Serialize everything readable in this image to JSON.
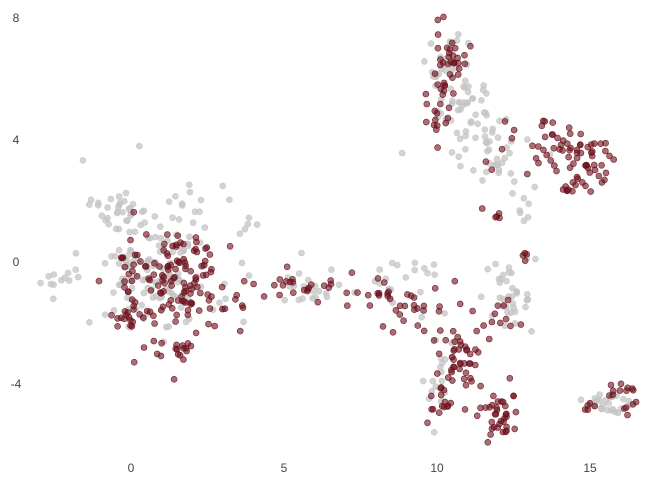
{
  "chart_data": {
    "type": "scatter",
    "title": "",
    "xlabel": "",
    "ylabel": "",
    "xlim": [
      -3.5,
      16.9
    ],
    "ylim": [
      -6.4,
      8.3
    ],
    "x_ticks": [
      0,
      5,
      10,
      15
    ],
    "y_ticks": [
      -4,
      0,
      4,
      8
    ],
    "x_tick_labels": [
      "0",
      "5",
      "10",
      "15"
    ],
    "y_tick_labels": [
      "-4",
      "0",
      "4",
      "8"
    ],
    "grid": false,
    "legend": "none",
    "colors": {
      "highlight": "#6b0f1a",
      "background": "#c4c4c4"
    },
    "series": [
      {
        "color": "#c4c4c4",
        "clusters": [
          {
            "cx": 0.9,
            "cy": -0.2,
            "sx": 1.2,
            "sy": 1.2,
            "n": 150
          },
          {
            "cx": -0.3,
            "cy": 1.6,
            "sx": 0.5,
            "sy": 0.35,
            "n": 30
          },
          {
            "cx": -2.3,
            "cy": -0.5,
            "sx": 0.35,
            "sy": 0.3,
            "n": 12
          },
          {
            "cx": 3.9,
            "cy": 1.0,
            "sx": 0.15,
            "sy": 0.15,
            "n": 4
          },
          {
            "cx": 6.2,
            "cy": -0.9,
            "sx": 1.3,
            "sy": 0.2,
            "n": 25
          },
          {
            "cx": 9.0,
            "cy": -0.3,
            "sx": 0.7,
            "sy": 0.3,
            "n": 15
          },
          {
            "cx": 10.3,
            "cy": 6.3,
            "sx": 0.4,
            "sy": 0.7,
            "n": 25
          },
          {
            "cx": 11.0,
            "cy": 5.0,
            "sx": 0.5,
            "sy": 0.6,
            "n": 40
          },
          {
            "cx": 11.8,
            "cy": 3.6,
            "sx": 0.6,
            "sy": 0.6,
            "n": 35
          },
          {
            "cx": 12.9,
            "cy": 1.8,
            "sx": 0.5,
            "sy": 0.4,
            "n": 8
          },
          {
            "cx": 12.4,
            "cy": -1.4,
            "sx": 0.4,
            "sy": 0.5,
            "n": 30
          },
          {
            "cx": 10.2,
            "cy": -2.8,
            "sx": 0.4,
            "sy": 0.6,
            "n": 12
          },
          {
            "cx": 10.0,
            "cy": -4.4,
            "sx": 0.4,
            "sy": 0.3,
            "n": 8
          },
          {
            "cx": 15.5,
            "cy": -4.7,
            "sx": 0.45,
            "sy": 0.3,
            "n": 25
          },
          {
            "cx": 12.6,
            "cy": -0.1,
            "sx": 0.3,
            "sy": 0.3,
            "n": 6
          }
        ]
      },
      {
        "color": "#6b0f1a",
        "clusters": [
          {
            "cx": 1.4,
            "cy": -0.7,
            "sx": 1.0,
            "sy": 1.0,
            "n": 140
          },
          {
            "cx": 0.0,
            "cy": -1.9,
            "sx": 0.3,
            "sy": 0.2,
            "n": 15
          },
          {
            "cx": 1.6,
            "cy": -3.0,
            "sx": 0.3,
            "sy": 0.15,
            "n": 12
          },
          {
            "cx": 6.5,
            "cy": -0.9,
            "sx": 1.5,
            "sy": 0.25,
            "n": 35
          },
          {
            "cx": 9.2,
            "cy": -1.4,
            "sx": 0.6,
            "sy": 0.4,
            "n": 25
          },
          {
            "cx": 10.3,
            "cy": 6.8,
            "sx": 0.3,
            "sy": 0.5,
            "n": 30
          },
          {
            "cx": 10.1,
            "cy": 5.0,
            "sx": 0.3,
            "sy": 0.6,
            "n": 20
          },
          {
            "cx": 13.3,
            "cy": 3.8,
            "sx": 0.7,
            "sy": 0.5,
            "n": 30
          },
          {
            "cx": 14.7,
            "cy": 3.3,
            "sx": 0.5,
            "sy": 0.5,
            "n": 40
          },
          {
            "cx": 14.5,
            "cy": 2.4,
            "sx": 0.3,
            "sy": 0.15,
            "n": 10
          },
          {
            "cx": 11.9,
            "cy": 1.6,
            "sx": 0.2,
            "sy": 0.1,
            "n": 5
          },
          {
            "cx": 10.8,
            "cy": -3.2,
            "sx": 0.4,
            "sy": 0.6,
            "n": 45
          },
          {
            "cx": 10.3,
            "cy": -4.7,
            "sx": 0.4,
            "sy": 0.3,
            "n": 15
          },
          {
            "cx": 12.1,
            "cy": -5.0,
            "sx": 0.35,
            "sy": 0.4,
            "n": 35
          },
          {
            "cx": 11.9,
            "cy": -1.9,
            "sx": 0.4,
            "sy": 0.3,
            "n": 10
          },
          {
            "cx": 16.0,
            "cy": -4.4,
            "sx": 0.3,
            "sy": 0.3,
            "n": 15
          },
          {
            "cx": 14.9,
            "cy": -4.8,
            "sx": 0.2,
            "sy": 0.1,
            "n": 5
          },
          {
            "cx": 12.9,
            "cy": 0.2,
            "sx": 0.15,
            "sy": 0.2,
            "n": 4
          }
        ]
      }
    ]
  }
}
